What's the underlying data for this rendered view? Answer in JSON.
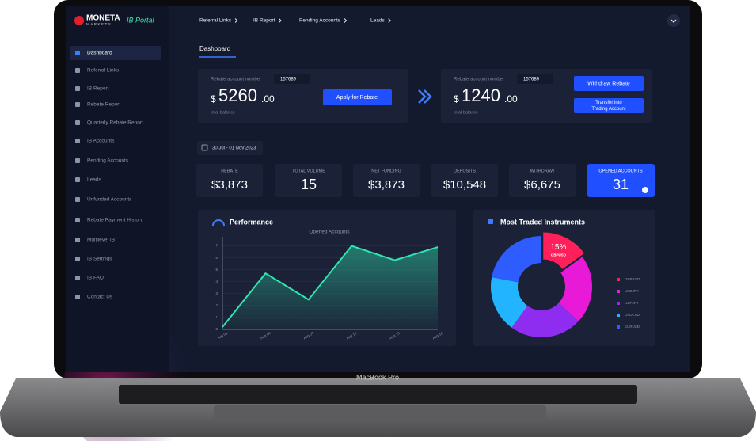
{
  "brand": {
    "name": "MONETA",
    "sub": "MARKETS",
    "portal": "IB Portal"
  },
  "top_nav": [
    "Referral Links",
    "IB Report",
    "Pending Accounts",
    "Leads"
  ],
  "sidebar": [
    "Dashboard",
    "Referral Links",
    "IB Report",
    "Rebate Report",
    "Quarterly Rebate Report",
    "IB Accounts",
    "Pending Accounts",
    "Leads",
    "Unfunded Accounts",
    "Rebate Payment History",
    "Multilevel IB",
    "IB Settings",
    "IB FAQ",
    "Contact Us"
  ],
  "page_title": "Dashboard",
  "rebate_card": {
    "account_label": "Rebate account number",
    "account": "157689",
    "currency": "$",
    "amount": "5260",
    "cents": ".00",
    "caption": "total balance",
    "button": "Apply for Rebate"
  },
  "withdraw_card": {
    "account_label": "Rebate account number",
    "account": "157689",
    "currency": "$",
    "amount": "1240",
    "cents": ".00",
    "caption": "total balance",
    "button": "Withdraw Rebate",
    "button2": "Transfer into Trading Account"
  },
  "date_range": "30 Jul - 01 Nov 2023",
  "stats": [
    {
      "label": "REBATE",
      "value": "$3,873"
    },
    {
      "label": "TOTAL VOLUME",
      "value": "15"
    },
    {
      "label": "NET FUNDING",
      "value": "$3,873"
    },
    {
      "label": "DEPOSITS",
      "value": "$10,548"
    },
    {
      "label": "WITHDRAW",
      "value": "$6,675"
    },
    {
      "label": "OPENED ACCOUNTS",
      "value": "31"
    }
  ],
  "performance": {
    "type": "line",
    "title": "Performance",
    "subtitle": "Opened Accounts",
    "categories": [
      "Aug 01",
      "Aug 04",
      "Aug 07",
      "Aug 10",
      "Aug 13",
      "Aug 16"
    ],
    "values": [
      0.2,
      4.7,
      2.5,
      7,
      5.8,
      6.9
    ],
    "color": "#2ee6b0",
    "ylim": [
      0,
      7.5
    ],
    "yticks": [
      0,
      1,
      2,
      3,
      4,
      5,
      6,
      7
    ]
  },
  "instruments": {
    "type": "pie",
    "title": "Most Traded Instruments",
    "categories": [
      "GBPSGD",
      "USDJPY",
      "GBPJPY",
      "USDCAD",
      "EURUSD"
    ],
    "values": [
      15,
      22,
      23,
      18,
      22
    ],
    "value_labels": [
      "15%",
      null,
      null,
      null,
      null
    ],
    "highlight": "GBPUSD",
    "colors": [
      "#ff1f5a",
      "#e81ad8",
      "#8e2cf0",
      "#22b4ff",
      "#2f5cff"
    ]
  },
  "device_label": "MacBook Pro"
}
